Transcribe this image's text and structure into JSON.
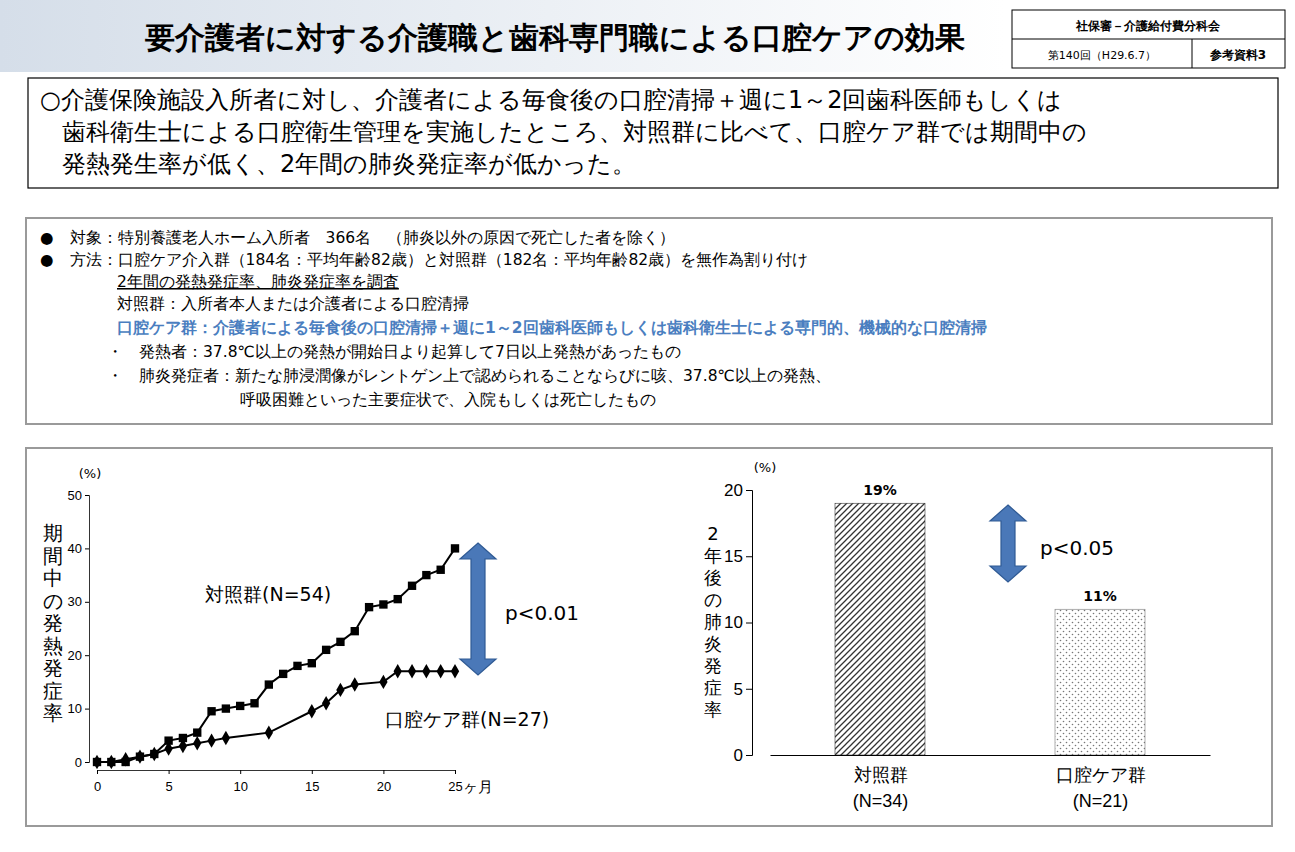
{
  "header": {
    "title": "要介護者に対する介護職と歯科専門職による口腔ケアの効果",
    "meeting": "社保審－介護給付費分科会",
    "session": "第140回（H29.6.7）",
    "doc": "参考資料3"
  },
  "summary": {
    "lines": [
      "○介護保険施設入所者に対し、介護者による毎食後の口腔清掃＋週に1～2回歯科医師もしくは",
      "歯科衛生士による口腔衛生管理を実施したところ、対照群に比べて、口腔ケア群では期間中の",
      "発熱発生率が低く、2年間の肺炎発症率が低かった。"
    ]
  },
  "method": {
    "lines": [
      "●　対象：特別養護老人ホーム入所者　366名　（肺炎以外の原因で死亡した者を除く）",
      "●　方法：口腔ケア介入群（184名：平均年齢82歳）と対照群（182名：平均年齢82歳）を無作為割り付け",
      "2年間の発熱発症率、肺炎発症率を調査",
      "対照群：入所者本人または介護者による口腔清掃",
      "口腔ケア群：介護者による毎食後の口腔清掃＋週に1～2回歯科医師もしくは歯科衛生士による専門的、機械的な口腔清掃",
      "・　発熱者：37.8℃以上の発熱が開始日より起算して7日以上発熱があったもの",
      "・　肺炎発症者：新たな肺浸潤像がレントゲン上で認められることならびに咳、37.8℃以上の発熱、",
      "呼吸困難といった主要症状で、入院もしくは死亡したもの"
    ]
  },
  "chart_data": [
    {
      "type": "line",
      "y_label": "期間中の発熱発症率",
      "y_unit": "(%)",
      "x_unit": "ヶ月",
      "xlim": [
        0,
        25
      ],
      "xticks": [
        0,
        5,
        10,
        15,
        20,
        25
      ],
      "ylim": [
        0,
        50
      ],
      "yticks": [
        0,
        10,
        20,
        30,
        40,
        50
      ],
      "annotation": "p<0.01",
      "series": [
        {
          "name": "対照群(N=54)",
          "color": "#000000",
          "marker": "square",
          "x": [
            0,
            1,
            2,
            3,
            4,
            5,
            6,
            7,
            8,
            9,
            10,
            11,
            12,
            13,
            14,
            15,
            16,
            17,
            18,
            19,
            20,
            21,
            22,
            23,
            24,
            25
          ],
          "values": [
            0,
            0,
            0,
            1,
            1.5,
            4,
            4.5,
            5.5,
            9.5,
            10,
            10.5,
            11,
            14.5,
            16.5,
            18,
            18.5,
            21,
            22.5,
            24.5,
            29,
            29.5,
            30.5,
            33,
            35,
            36,
            40
          ]
        },
        {
          "name": "口腔ケア群(N=27)",
          "color": "#000000",
          "marker": "diamond",
          "x": [
            0,
            1,
            2,
            3,
            4,
            5,
            6,
            7,
            8,
            9,
            12,
            15,
            16,
            17,
            18,
            20,
            21,
            22,
            23,
            24,
            25
          ],
          "values": [
            0,
            0,
            0.5,
            1,
            1.5,
            2.5,
            3,
            3.5,
            4,
            4.5,
            5.5,
            9.5,
            11,
            13.5,
            14.5,
            15,
            17,
            17,
            17,
            17,
            17
          ]
        }
      ]
    },
    {
      "type": "bar",
      "y_label": "2年後の肺炎発症率",
      "y_unit": "(%)",
      "categories": [
        "対照群\n(N=34)",
        "口腔ケア群\n(N=21)"
      ],
      "values": [
        19,
        11
      ],
      "value_labels": [
        "19%",
        "11%"
      ],
      "data_labels": true,
      "colors": [
        "#333333",
        "#777777"
      ],
      "ylim": [
        0,
        20
      ],
      "yticks": [
        0,
        5,
        10,
        15,
        20
      ],
      "annotation": "p<0.05"
    }
  ]
}
